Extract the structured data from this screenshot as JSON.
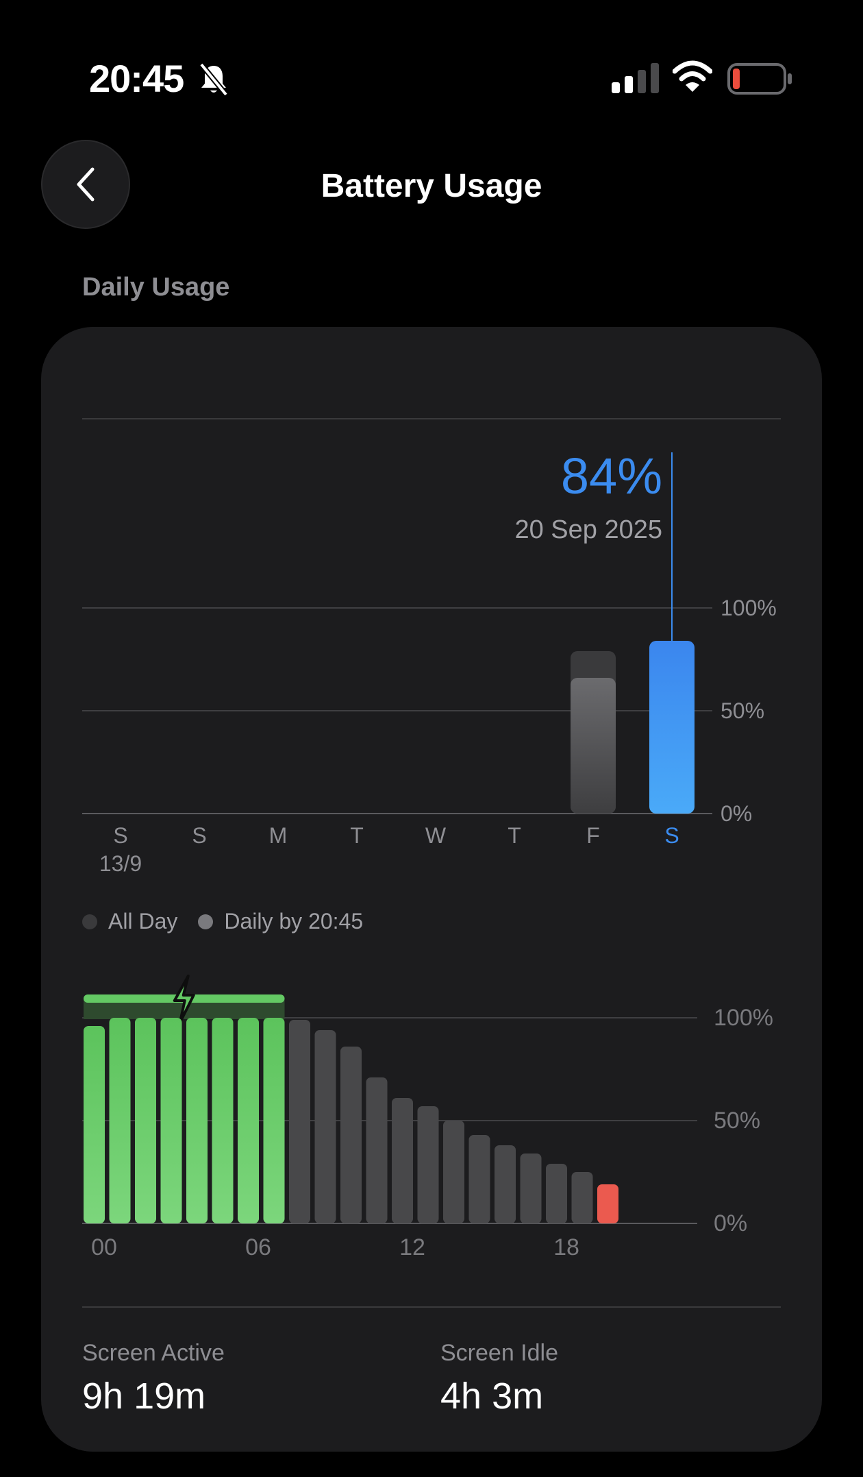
{
  "status_bar": {
    "time": "20:45",
    "icons": [
      "bell-slash-icon",
      "cellular-signal-icon",
      "wifi-icon",
      "battery-low-icon"
    ]
  },
  "header": {
    "title": "Battery Usage",
    "back_icon": "chevron-left-icon"
  },
  "section": {
    "label": "Daily Usage"
  },
  "colors": {
    "accent": "#3b8cf0",
    "charge_green": "#64c964",
    "low_red": "#eb5a4f",
    "bar_gray": "#48484a"
  },
  "chart_data": [
    {
      "type": "bar",
      "categories": [
        "S",
        "S",
        "M",
        "T",
        "W",
        "T",
        "F",
        "S"
      ],
      "sublabels": [
        "13/9",
        "",
        "",
        "",
        "",
        "",
        "",
        ""
      ],
      "series": [
        {
          "name": "All Day",
          "values": [
            null,
            null,
            null,
            null,
            null,
            null,
            79,
            84
          ]
        },
        {
          "name": "Daily by 20:45",
          "values": [
            null,
            null,
            null,
            null,
            null,
            null,
            66,
            84
          ]
        }
      ],
      "selected_index": 7,
      "tooltip": {
        "value": "84%",
        "date": "20 Sep 2025"
      },
      "ylim": [
        0,
        100
      ],
      "y_ticks": [
        "0%",
        "50%",
        "100%"
      ],
      "grid": true
    },
    {
      "type": "bar",
      "x": [
        0,
        1,
        2,
        3,
        4,
        5,
        6,
        7,
        8,
        9,
        10,
        11,
        12,
        13,
        14,
        15,
        16,
        17,
        18,
        19,
        20
      ],
      "values": [
        96,
        100,
        100,
        100,
        100,
        100,
        100,
        100,
        99,
        94,
        86,
        71,
        61,
        57,
        50,
        43,
        38,
        34,
        29,
        25,
        19
      ],
      "charging_hours": [
        0,
        1,
        2,
        3,
        4,
        5,
        6,
        7
      ],
      "low_hours": [
        20
      ],
      "x_ticks": [
        "00",
        "06",
        "12",
        "18"
      ],
      "ylim": [
        0,
        100
      ],
      "y_ticks": [
        "0%",
        "50%",
        "100%"
      ],
      "grid": true
    }
  ],
  "stats": {
    "screen_active": {
      "label": "Screen Active",
      "value": "9h 19m"
    },
    "screen_idle": {
      "label": "Screen Idle",
      "value": "4h 3m"
    }
  }
}
